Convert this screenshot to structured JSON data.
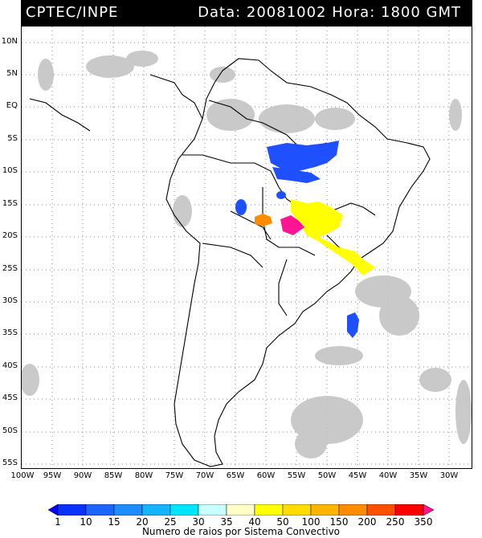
{
  "header": {
    "left": "CPTEC/INPE",
    "right": "Data: 20081002 Hora: 1800 GMT"
  },
  "map": {
    "lat_labels": [
      "10N",
      "5N",
      "EQ",
      "5S",
      "10S",
      "15S",
      "20S",
      "25S",
      "30S",
      "35S",
      "40S",
      "45S",
      "50S",
      "55S"
    ],
    "lon_labels": [
      "100W",
      "95W",
      "90W",
      "85W",
      "80W",
      "75W",
      "70W",
      "65W",
      "60W",
      "55W",
      "50W",
      "45W",
      "40W",
      "35W",
      "30W"
    ],
    "colors": {
      "cloud": "#c0c0c0",
      "coast": "#000000",
      "grid": "#888888"
    }
  },
  "colorbar": {
    "labels": [
      "1",
      "10",
      "15",
      "20",
      "25",
      "30",
      "35",
      "40",
      "50",
      "100",
      "150",
      "200",
      "250",
      "350"
    ],
    "colors": [
      "#0000ff",
      "#0a4bff",
      "#1e78ff",
      "#14a5ff",
      "#00e1ff",
      "#c8ffff",
      "#ffffc8",
      "#ffff00",
      "#ffdc00",
      "#ffb400",
      "#ff8c00",
      "#ff5a00",
      "#ff0000",
      "#ff1493"
    ],
    "title": "Numero de raios por Sistema Convectivo"
  },
  "systems": [
    {
      "name": "conv-blue-north",
      "color": "#1e50ff"
    },
    {
      "name": "conv-blue-mid",
      "color": "#1e50ff"
    },
    {
      "name": "conv-yellow",
      "color": "#ffff00"
    },
    {
      "name": "conv-orange",
      "color": "#ff8c00"
    },
    {
      "name": "conv-pink",
      "color": "#ff1493"
    },
    {
      "name": "conv-blue-south",
      "color": "#1e50ff"
    }
  ]
}
